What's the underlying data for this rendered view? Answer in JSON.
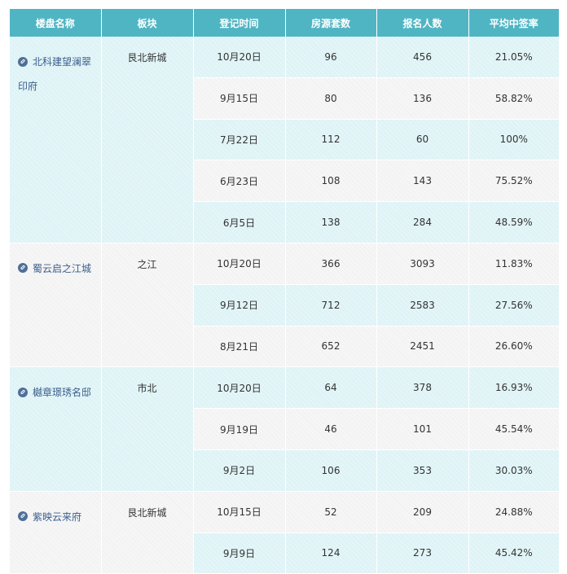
{
  "headers": [
    "楼盘名称",
    "板块",
    "登记时间",
    "房源套数",
    "报名人数",
    "平均中签率"
  ],
  "groups": [
    {
      "name": "北科建望澜翠印府",
      "region": "艮北新城",
      "rows": [
        {
          "date": "10月20日",
          "units": "96",
          "applicants": "456",
          "rate": "21.05%"
        },
        {
          "date": "9月15日",
          "units": "80",
          "applicants": "136",
          "rate": "58.82%"
        },
        {
          "date": "7月22日",
          "units": "112",
          "applicants": "60",
          "rate": "100%"
        },
        {
          "date": "6月23日",
          "units": "108",
          "applicants": "143",
          "rate": "75.52%"
        },
        {
          "date": "6月5日",
          "units": "138",
          "applicants": "284",
          "rate": "48.59%"
        }
      ]
    },
    {
      "name": "蜀云启之江城",
      "region": "之江",
      "rows": [
        {
          "date": "10月20日",
          "units": "366",
          "applicants": "3093",
          "rate": "11.83%"
        },
        {
          "date": "9月12日",
          "units": "712",
          "applicants": "2583",
          "rate": "27.56%"
        },
        {
          "date": "8月21日",
          "units": "652",
          "applicants": "2451",
          "rate": "26.60%"
        }
      ]
    },
    {
      "name": "樾章璟琇名邸",
      "region": "市北",
      "rows": [
        {
          "date": "10月20日",
          "units": "64",
          "applicants": "378",
          "rate": "16.93%"
        },
        {
          "date": "9月19日",
          "units": "46",
          "applicants": "101",
          "rate": "45.54%"
        },
        {
          "date": "9月2日",
          "units": "106",
          "applicants": "353",
          "rate": "30.03%"
        }
      ]
    },
    {
      "name": "紫映云来府",
      "region": "艮北新城",
      "rows": [
        {
          "date": "10月15日",
          "units": "52",
          "applicants": "209",
          "rate": "24.88%"
        },
        {
          "date": "9月9日",
          "units": "124",
          "applicants": "273",
          "rate": "45.42%"
        }
      ]
    }
  ],
  "colors": {
    "header": "#50b5c3",
    "row_blue": "#def3f6",
    "row_gray": "#f6f6f6",
    "project_link": "#3b5e8c"
  },
  "icons": {
    "project": "link-icon"
  }
}
